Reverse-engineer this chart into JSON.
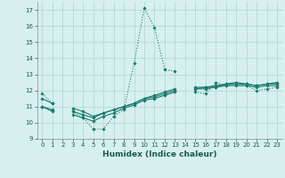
{
  "xlabel": "Humidex (Indice chaleur)",
  "bg_color": "#d6f0ef",
  "line_color": "#1a7a6e",
  "grid_color": "#b8d8d6",
  "xlim": [
    -0.5,
    23.5
  ],
  "ylim": [
    9,
    17.5
  ],
  "yticks": [
    9,
    10,
    11,
    12,
    13,
    14,
    15,
    16,
    17
  ],
  "xticks": [
    0,
    1,
    2,
    3,
    4,
    5,
    6,
    7,
    8,
    9,
    10,
    11,
    12,
    13,
    14,
    15,
    16,
    17,
    18,
    19,
    20,
    21,
    22,
    23
  ],
  "series": [
    {
      "style": "dotted",
      "x": [
        0,
        1,
        3,
        4,
        5,
        6,
        7,
        8,
        9,
        10,
        11,
        12,
        13,
        15,
        16,
        17,
        18,
        19,
        20,
        21,
        22,
        23
      ],
      "y": [
        11.8,
        11.2,
        10.7,
        10.3,
        9.6,
        9.6,
        10.4,
        10.8,
        13.7,
        17.1,
        15.9,
        13.3,
        13.2,
        11.9,
        11.8,
        12.5,
        12.3,
        12.4,
        12.3,
        12.0,
        12.1,
        12.2
      ],
      "breaks_after": [
        1,
        13
      ]
    },
    {
      "style": "solid",
      "x": [
        0,
        1,
        3,
        4,
        5,
        6,
        7,
        8,
        9,
        10,
        11,
        12,
        13,
        15,
        16,
        17,
        18,
        19,
        20,
        21,
        22,
        23
      ],
      "y": [
        11.0,
        10.7,
        10.5,
        10.3,
        10.1,
        10.4,
        10.6,
        10.9,
        11.1,
        11.4,
        11.5,
        11.7,
        11.9,
        12.1,
        12.1,
        12.2,
        12.3,
        12.3,
        12.3,
        12.2,
        12.3,
        12.3
      ],
      "breaks_after": [
        1,
        13
      ]
    },
    {
      "style": "solid",
      "x": [
        0,
        1,
        3,
        4,
        5,
        6,
        7,
        8,
        9,
        10,
        11,
        12,
        13,
        15,
        16,
        17,
        18,
        19,
        20,
        21,
        22,
        23
      ],
      "y": [
        11.0,
        10.8,
        10.7,
        10.5,
        10.3,
        10.6,
        10.8,
        11.0,
        11.2,
        11.5,
        11.6,
        11.8,
        12.0,
        12.1,
        12.2,
        12.2,
        12.4,
        12.4,
        12.4,
        12.3,
        12.4,
        12.4
      ],
      "breaks_after": [
        1,
        13
      ]
    },
    {
      "style": "solid",
      "x": [
        0,
        1,
        3,
        4,
        5,
        6,
        7,
        8,
        9,
        10,
        11,
        12,
        13,
        15,
        16,
        17,
        18,
        19,
        20,
        21,
        22,
        23
      ],
      "y": [
        11.5,
        11.2,
        10.9,
        10.7,
        10.4,
        10.6,
        10.8,
        11.0,
        11.2,
        11.5,
        11.7,
        11.9,
        12.1,
        12.2,
        12.2,
        12.3,
        12.4,
        12.5,
        12.4,
        12.3,
        12.4,
        12.5
      ],
      "breaks_after": [
        1,
        13
      ]
    }
  ]
}
